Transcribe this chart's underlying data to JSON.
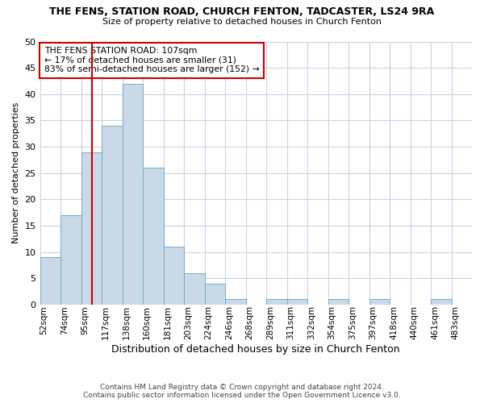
{
  "title": "THE FENS, STATION ROAD, CHURCH FENTON, TADCASTER, LS24 9RA",
  "subtitle": "Size of property relative to detached houses in Church Fenton",
  "xlabel": "Distribution of detached houses by size in Church Fenton",
  "ylabel": "Number of detached properties",
  "footer_line1": "Contains HM Land Registry data © Crown copyright and database right 2024.",
  "footer_line2": "Contains public sector information licensed under the Open Government Licence v3.0.",
  "bin_labels": [
    "52sqm",
    "74sqm",
    "95sqm",
    "117sqm",
    "138sqm",
    "160sqm",
    "181sqm",
    "203sqm",
    "224sqm",
    "246sqm",
    "268sqm",
    "289sqm",
    "311sqm",
    "332sqm",
    "354sqm",
    "375sqm",
    "397sqm",
    "418sqm",
    "440sqm",
    "461sqm",
    "483sqm"
  ],
  "bar_values": [
    9,
    17,
    29,
    34,
    42,
    26,
    11,
    6,
    4,
    1,
    0,
    1,
    1,
    0,
    1,
    0,
    1,
    0,
    0,
    1,
    0
  ],
  "bar_color": "#c9d9e8",
  "bar_edgecolor": "#7aaac8",
  "vline_x_index": 2.6,
  "vline_color": "#cc0000",
  "annotation_text": "THE FENS STATION ROAD: 107sqm\n← 17% of detached houses are smaller (31)\n83% of semi-detached houses are larger (152) →",
  "annotation_box_edgecolor": "#cc0000",
  "ylim": [
    0,
    50
  ],
  "yticks": [
    0,
    5,
    10,
    15,
    20,
    25,
    30,
    35,
    40,
    45,
    50
  ],
  "grid_color": "#c8d4e4",
  "background_color": "#ffffff",
  "plot_bg_color": "#ffffff"
}
